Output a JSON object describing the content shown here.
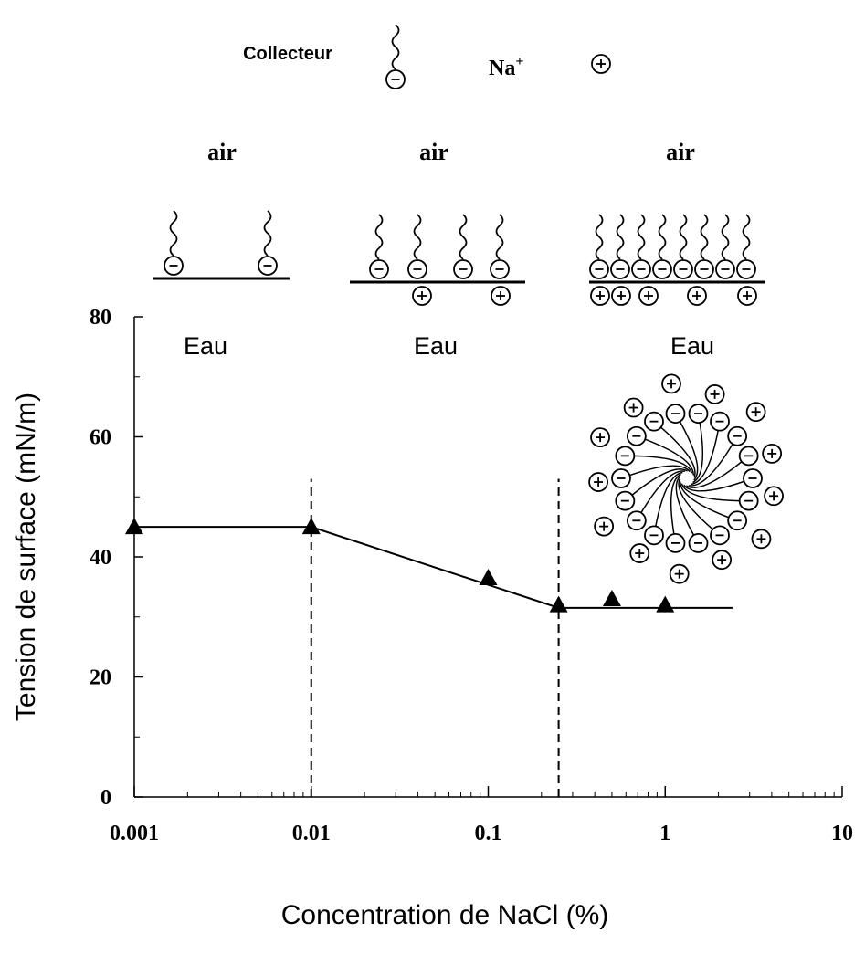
{
  "chart_data": {
    "type": "line",
    "x_label": "Concentration de NaCl (%)",
    "y_label": "Tension de surface (mN/m)",
    "log_x": true,
    "xlim": [
      0.001,
      10
    ],
    "ylim": [
      0,
      80
    ],
    "xticks": [
      0.001,
      0.01,
      0.1,
      1,
      10
    ],
    "xminor_ticks": [
      0.002,
      0.003,
      0.004,
      0.005,
      0.006,
      0.007,
      0.008,
      0.009,
      0.02,
      0.03,
      0.04,
      0.05,
      0.06,
      0.07,
      0.08,
      0.09,
      0.2,
      0.3,
      0.4,
      0.5,
      0.6,
      0.7,
      0.8,
      0.9,
      2,
      3,
      4,
      5,
      6,
      7,
      8,
      9
    ],
    "yticks": [
      0,
      20,
      40,
      60,
      80
    ],
    "yminor_ticks": [
      10,
      30,
      50,
      70
    ],
    "series": [
      {
        "style": "markers",
        "color": "#000000",
        "x": [
          0.001,
          0.01,
          0.1,
          0.25,
          0.5,
          1
        ],
        "values": [
          45,
          45,
          36.5,
          32,
          33,
          32
        ]
      },
      {
        "style": "line",
        "color": "#000000",
        "x": [
          0.001,
          0.01,
          0.25,
          2.4
        ],
        "values": [
          45,
          45,
          31.5,
          31.5
        ]
      }
    ],
    "reference_lines": [
      {
        "x": 0.01,
        "ylim": [
          0,
          53
        ]
      },
      {
        "x": 0.25,
        "ylim": [
          0,
          53
        ]
      }
    ]
  },
  "diagram": {
    "collector_label": "Collecteur",
    "ion_label": "Na",
    "ion_charge": "+",
    "phase_top": [
      "air",
      "air",
      "air"
    ],
    "phase_bottom": [
      "Eau",
      "Eau",
      "Eau"
    ]
  }
}
